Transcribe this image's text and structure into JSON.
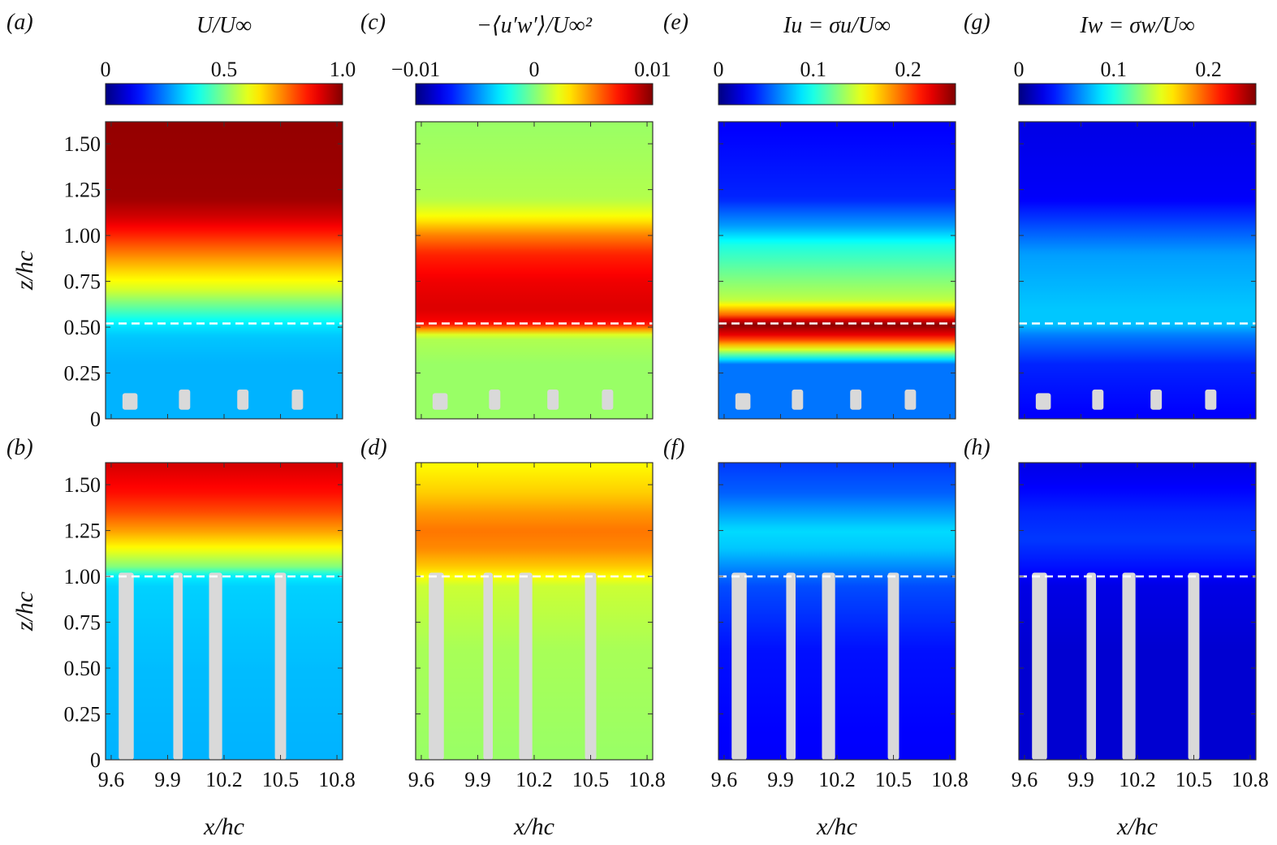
{
  "figure": {
    "columns": [
      {
        "key": "U",
        "quantity_label": "U/U∞",
        "colorbar": {
          "colormap": "jet",
          "vmin": 0,
          "vmax": 1.0,
          "ticks": [
            "0",
            "0.5",
            "1.0"
          ],
          "tick_values": [
            0,
            0.5,
            1.0
          ]
        },
        "panels": [
          "(a)",
          "(b)"
        ]
      },
      {
        "key": "uw",
        "quantity_label": "−⟨u′w′⟩/U∞²",
        "colorbar": {
          "colormap": "jet",
          "vmin": -0.01,
          "vmax": 0.01,
          "ticks": [
            "−0.01",
            "0",
            "0.01"
          ],
          "tick_values": [
            -0.01,
            0,
            0.01
          ]
        },
        "panels": [
          "(c)",
          "(d)"
        ]
      },
      {
        "key": "Iu",
        "quantity_label": "Iu = σu/U∞",
        "colorbar": {
          "colormap": "jet",
          "vmin": 0,
          "vmax": 0.25,
          "ticks": [
            "0",
            "0.1",
            "0.2"
          ],
          "tick_values": [
            0,
            0.1,
            0.2
          ]
        },
        "panels": [
          "(e)",
          "(f)"
        ]
      },
      {
        "key": "Iw",
        "quantity_label": "Iw = σw/U∞",
        "colorbar": {
          "colormap": "jet",
          "vmin": 0,
          "vmax": 0.25,
          "ticks": [
            "0",
            "0.1",
            "0.2"
          ],
          "tick_values": [
            0,
            0.1,
            0.2
          ]
        },
        "panels": [
          "(g)",
          "(h)"
        ]
      }
    ]
  },
  "chart_data": {
    "type": "heatmap",
    "title": "",
    "xlabel": "x/hc",
    "ylabel": "z/hc",
    "xlim": [
      9.57,
      10.83
    ],
    "ylim": [
      0,
      1.62
    ],
    "x_ticks": [
      "9.6",
      "9.9",
      "10.2",
      "10.5",
      "10.8"
    ],
    "x_tick_values": [
      9.6,
      9.9,
      10.2,
      10.5,
      10.8
    ],
    "y_ticks": [
      "0",
      "0.25",
      "0.50",
      "0.75",
      "1.00",
      "1.25",
      "1.50"
    ],
    "y_tick_values": [
      0,
      0.25,
      0.5,
      0.75,
      1.0,
      1.25,
      1.5
    ],
    "rows": [
      {
        "name": "top",
        "canopy_height": 0.52,
        "dashed_line_z": 0.52,
        "obstacles": [
          {
            "x0": 9.66,
            "x1": 9.74,
            "z0": 0.05,
            "z1": 0.14
          },
          {
            "x0": 9.96,
            "x1": 10.02,
            "z0": 0.05,
            "z1": 0.16
          },
          {
            "x0": 10.27,
            "x1": 10.33,
            "z0": 0.05,
            "z1": 0.16
          },
          {
            "x0": 10.56,
            "x1": 10.62,
            "z0": 0.05,
            "z1": 0.16
          }
        ],
        "profiles": {
          "U": {
            "z": [
              0,
              0.1,
              0.3,
              0.45,
              0.52,
              0.6,
              0.7,
              0.8,
              0.9,
              1.0,
              1.1,
              1.2,
              1.62
            ],
            "v": [
              0.3,
              0.3,
              0.3,
              0.32,
              0.36,
              0.46,
              0.58,
              0.66,
              0.75,
              0.84,
              0.92,
              0.97,
              0.98
            ]
          },
          "uw": {
            "z": [
              0,
              0.3,
              0.45,
              0.52,
              0.6,
              0.75,
              0.9,
              1.0,
              1.1,
              1.2,
              1.62
            ],
            "v": [
              0.0005,
              0.0005,
              0.001,
              0.0075,
              0.0082,
              0.0078,
              0.0068,
              0.005,
              0.0025,
              0.001,
              0.0005
            ]
          },
          "Iu": {
            "z": [
              0,
              0.3,
              0.38,
              0.45,
              0.52,
              0.57,
              0.65,
              0.8,
              0.95,
              1.05,
              1.2,
              1.62
            ],
            "v": [
              0.06,
              0.06,
              0.15,
              0.22,
              0.25,
              0.19,
              0.14,
              0.12,
              0.1,
              0.07,
              0.04,
              0.03
            ]
          },
          "Iw": {
            "z": [
              0,
              0.3,
              0.45,
              0.52,
              0.6,
              0.75,
              0.9,
              1.05,
              1.2,
              1.62
            ],
            "v": [
              0.03,
              0.04,
              0.06,
              0.08,
              0.08,
              0.075,
              0.07,
              0.05,
              0.03,
              0.025
            ]
          }
        }
      },
      {
        "name": "bottom",
        "canopy_height": 1.0,
        "dashed_line_z": 1.0,
        "obstacles": [
          {
            "x0": 9.64,
            "x1": 9.72,
            "z0": 0.0,
            "z1": 1.02
          },
          {
            "x0": 9.93,
            "x1": 9.98,
            "z0": 0.0,
            "z1": 1.02
          },
          {
            "x0": 10.12,
            "x1": 10.19,
            "z0": 0.0,
            "z1": 1.02
          },
          {
            "x0": 10.47,
            "x1": 10.53,
            "z0": 0.0,
            "z1": 1.02
          }
        ],
        "profiles": {
          "U": {
            "z": [
              0,
              0.5,
              0.95,
              1.0,
              1.05,
              1.15,
              1.25,
              1.35,
              1.45,
              1.62
            ],
            "v": [
              0.3,
              0.31,
              0.33,
              0.36,
              0.5,
              0.62,
              0.72,
              0.8,
              0.86,
              0.92
            ]
          },
          "uw": {
            "z": [
              0,
              0.6,
              0.95,
              1.05,
              1.15,
              1.25,
              1.35,
              1.45,
              1.62
            ],
            "v": [
              0.0005,
              0.0008,
              0.0015,
              0.0035,
              0.0048,
              0.0052,
              0.0045,
              0.0035,
              0.0025
            ]
          },
          "Iu": {
            "z": [
              0,
              0.6,
              0.95,
              1.05,
              1.15,
              1.25,
              1.35,
              1.45,
              1.62
            ],
            "v": [
              0.03,
              0.035,
              0.05,
              0.065,
              0.08,
              0.085,
              0.07,
              0.055,
              0.045
            ]
          },
          "Iw": {
            "z": [
              0,
              0.6,
              0.95,
              1.05,
              1.2,
              1.35,
              1.5,
              1.62
            ],
            "v": [
              0.02,
              0.02,
              0.025,
              0.035,
              0.045,
              0.04,
              0.03,
              0.025
            ]
          }
        }
      }
    ]
  }
}
